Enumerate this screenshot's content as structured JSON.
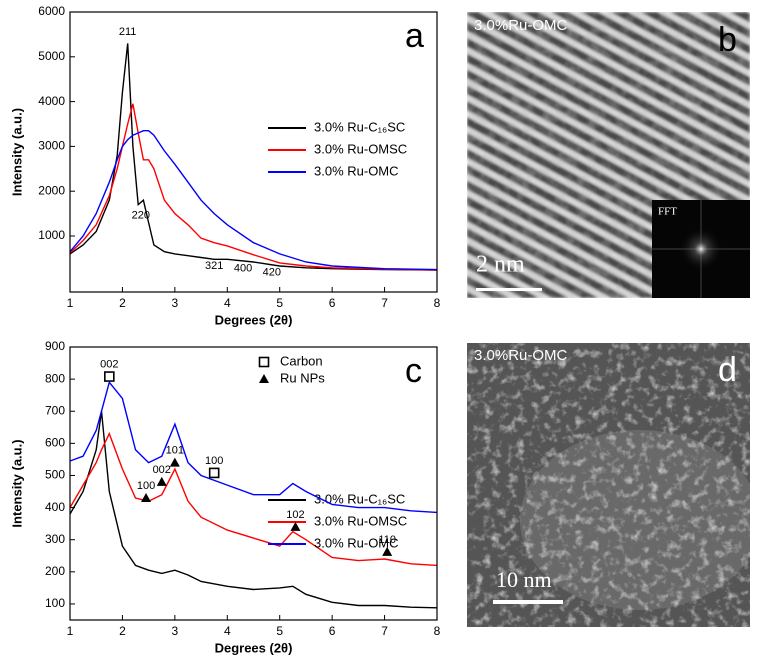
{
  "chart_data": [
    {
      "type": "line",
      "panel_label": "a",
      "x_label": "Degrees (2θ)",
      "y_label": "Intensity (a.u.)",
      "x": [
        1,
        1.25,
        1.5,
        1.75,
        1.9,
        2.0,
        2.1,
        2.2,
        2.3,
        2.4,
        2.5,
        2.6,
        2.8,
        3.0,
        3.25,
        3.5,
        3.75,
        4,
        4.5,
        5,
        5.5,
        6,
        7,
        8
      ],
      "series": [
        {
          "name": "3.0% Ru-C₁₆SC",
          "color": "#000000",
          "values": [
            600,
            800,
            1100,
            1800,
            2800,
            4200,
            5300,
            3000,
            1700,
            1800,
            1300,
            800,
            650,
            600,
            560,
            520,
            480,
            480,
            420,
            330,
            290,
            270,
            250,
            240
          ]
        },
        {
          "name": "3.0% Ru-OMSC",
          "color": "#ff0000",
          "values": [
            620,
            900,
            1250,
            1900,
            2500,
            3000,
            3500,
            3950,
            3300,
            2700,
            2700,
            2500,
            1800,
            1500,
            1250,
            950,
            850,
            780,
            580,
            400,
            330,
            290,
            260,
            240
          ]
        },
        {
          "name": "3.0% Ru-OMC",
          "color": "#0000ff",
          "values": [
            650,
            1000,
            1500,
            2200,
            2700,
            3000,
            3150,
            3250,
            3300,
            3350,
            3350,
            3250,
            2900,
            2600,
            2200,
            1800,
            1500,
            1250,
            850,
            600,
            420,
            330,
            270,
            250
          ]
        }
      ],
      "xlim": [
        1,
        8
      ],
      "xticks": [
        1,
        2,
        3,
        4,
        5,
        6,
        7,
        8
      ],
      "ylim": [
        -250,
        6000
      ],
      "yticks": [
        1000,
        2000,
        3000,
        4000,
        5000,
        6000
      ],
      "annotations": [
        {
          "text": "211",
          "x": 2.1,
          "y": 5550
        },
        {
          "text": "220",
          "x": 2.35,
          "y": 1450
        },
        {
          "text": "321",
          "x": 3.75,
          "y": 330
        },
        {
          "text": "400",
          "x": 4.3,
          "y": 270
        },
        {
          "text": "420",
          "x": 4.85,
          "y": 180
        }
      ]
    },
    {
      "type": "line",
      "panel_label": "c",
      "x_label": "Degrees (2θ)",
      "y_label": "Intensity (a.u.)",
      "x": [
        1,
        1.25,
        1.5,
        1.6,
        1.75,
        2.0,
        2.25,
        2.5,
        2.75,
        3.0,
        3.25,
        3.5,
        4,
        4.5,
        5,
        5.25,
        5.5,
        6,
        6.5,
        7,
        7.5,
        8
      ],
      "series": [
        {
          "name": "3.0% Ru-C₁₆SC",
          "color": "#000000",
          "values": [
            380,
            450,
            580,
            700,
            450,
            280,
            220,
            205,
            195,
            205,
            190,
            170,
            155,
            145,
            150,
            155,
            130,
            105,
            95,
            95,
            90,
            88
          ]
        },
        {
          "name": "3.0% Ru-OMSC",
          "color": "#ff0000",
          "values": [
            400,
            470,
            540,
            580,
            630,
            520,
            430,
            420,
            440,
            520,
            420,
            370,
            330,
            305,
            280,
            325,
            300,
            245,
            235,
            240,
            225,
            220
          ]
        },
        {
          "name": "3.0% Ru-OMC",
          "color": "#0000ff",
          "values": [
            545,
            560,
            640,
            700,
            790,
            740,
            580,
            540,
            560,
            660,
            540,
            500,
            470,
            440,
            440,
            475,
            450,
            410,
            400,
            400,
            390,
            385
          ]
        }
      ],
      "xlim": [
        1,
        8
      ],
      "xticks": [
        1,
        2,
        3,
        4,
        5,
        6,
        7,
        8
      ],
      "ylim": [
        50,
        900
      ],
      "yticks": [
        100,
        200,
        300,
        400,
        500,
        600,
        700,
        800,
        900
      ],
      "marker_legend": [
        {
          "label": "Carbon",
          "marker": "square"
        },
        {
          "label": "Ru NPs",
          "marker": "triangle"
        }
      ],
      "annotations": [
        {
          "text": "002",
          "x": 1.75,
          "y": 808,
          "marker": "square"
        },
        {
          "text": "100",
          "x": 2.45,
          "y": 430,
          "marker": "triangle"
        },
        {
          "text": "002",
          "x": 2.75,
          "y": 480,
          "marker": "triangle"
        },
        {
          "text": "101",
          "x": 3.0,
          "y": 540,
          "marker": "triangle"
        },
        {
          "text": "100",
          "x": 3.75,
          "y": 508,
          "marker": "square"
        },
        {
          "text": "102",
          "x": 5.3,
          "y": 340,
          "marker": "triangle"
        },
        {
          "text": "110",
          "x": 7.05,
          "y": 262,
          "marker": "triangle"
        }
      ]
    }
  ],
  "images": [
    {
      "panel_label": "b",
      "caption": "3.0%Ru-OMC",
      "scale_bar": "2 nm",
      "inset": "FFT"
    },
    {
      "panel_label": "d",
      "caption": "3.0%Ru-OMC",
      "scale_bar": "10 nm"
    }
  ]
}
